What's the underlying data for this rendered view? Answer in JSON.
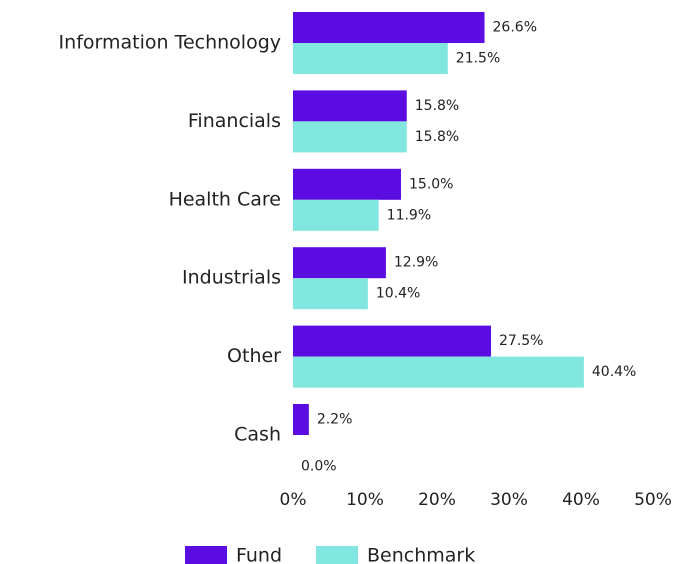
{
  "chart_data": {
    "type": "bar",
    "orientation": "horizontal",
    "categories": [
      "Information Technology",
      "Financials",
      "Health Care",
      "Industrials",
      "Other",
      "Cash"
    ],
    "series": [
      {
        "name": "Fund",
        "color": "#5b0ce0",
        "values": [
          26.6,
          15.8,
          15.0,
          12.9,
          27.5,
          2.2
        ],
        "value_labels": [
          "26.6%",
          "15.8%",
          "15.0%",
          "12.9%",
          "27.5%",
          "2.2%"
        ]
      },
      {
        "name": "Benchmark",
        "color": "#80e6df",
        "values": [
          21.5,
          15.8,
          11.9,
          10.4,
          40.4,
          0.0
        ],
        "value_labels": [
          "21.5%",
          "15.8%",
          "11.9%",
          "10.4%",
          "40.4%",
          "0.0%"
        ]
      }
    ],
    "xlim": [
      0,
      50
    ],
    "xticks": [
      {
        "value": 0,
        "label": "0%"
      },
      {
        "value": 10,
        "label": "10%"
      },
      {
        "value": 20,
        "label": "20%"
      },
      {
        "value": 30,
        "label": "30%"
      },
      {
        "value": 40,
        "label": "40%"
      },
      {
        "value": 50,
        "label": "50%"
      }
    ],
    "legend": "bottom"
  }
}
